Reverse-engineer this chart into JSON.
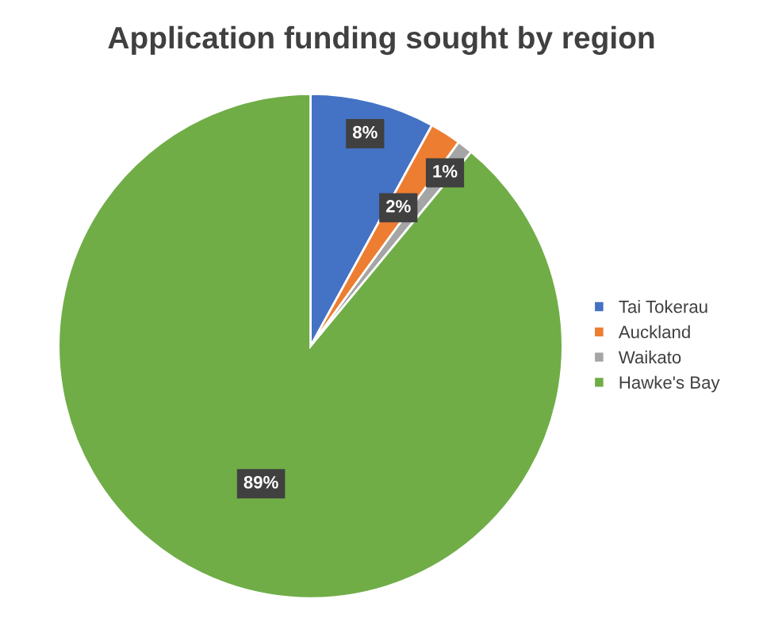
{
  "chart_data": {
    "type": "pie",
    "title": "Application funding sought by region",
    "categories": [
      "Tai Tokerau",
      "Auckland",
      "Waikato",
      "Hawke's Bay"
    ],
    "values": [
      8,
      2,
      1,
      89
    ],
    "colors": [
      "#4472c4",
      "#ed7d31",
      "#a5a5a5",
      "#70ad47"
    ],
    "value_labels": [
      "8%",
      "2%",
      "1%",
      "89%"
    ],
    "legend": "right"
  }
}
